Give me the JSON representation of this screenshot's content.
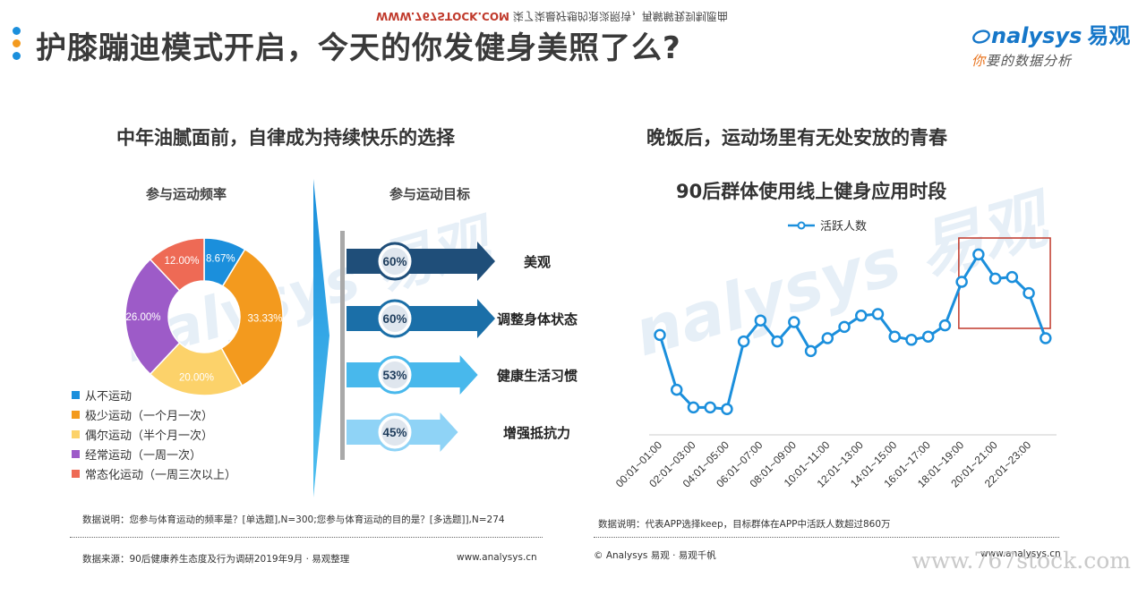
{
  "header": {
    "title": "护膝蹦迪模式开启，今天的你发健身美照了么?",
    "mirror_text_red": "WWW.767STOCK.COM",
    "mirror_text": "柒了柒最好想的浪淡照诗，再解解我到制愿曲",
    "dot_colors": [
      "#1b8fdc",
      "#f39a1e",
      "#1b8fdc"
    ]
  },
  "logo": {
    "brand": "nalysys",
    "brand_cn": "易观",
    "slogan_accent": "你",
    "slogan": "要的数据分析",
    "color": "#1677c9"
  },
  "left": {
    "section_title": "中年油腻面前，自律成为持续快乐的选择",
    "freq_title": "参与运动频率",
    "goal_title": "参与运动目标",
    "note": "数据说明：您参与体育运动的频率是？[单选题],N=300;您参与体育运动的目的是？[多选题]],N=274",
    "source": "数据来源：90后健康养生态度及行为调研2019年9月 · 易观整理",
    "site": "www.analysys.cn"
  },
  "right": {
    "section_title": "晚饭后，运动场里有无处安放的青春",
    "note": "数据说明：代表APP选择keep，目标群体在APP中活跃人数超过860万",
    "copyright": "© Analysys 易观 · 易观千帆",
    "site": "www.analysys.cn"
  },
  "watermark": "www.767stock.com",
  "chart_data": [
    {
      "type": "pie",
      "title": "参与运动频率",
      "categories": [
        "从不运动",
        "极少运动（一个月一次）",
        "偶尔运动（半个月一次）",
        "经常运动（一周一次）",
        "常态化运动（一周三次以上）"
      ],
      "values": [
        8.67,
        33.33,
        20.0,
        26.0,
        12.0
      ],
      "labels": [
        "8.67%",
        "33.33%",
        "20.00%",
        "26.00%",
        "12.00%"
      ],
      "colors": [
        "#1b8fdc",
        "#f39a1e",
        "#fcd26a",
        "#9d5bc8",
        "#ee6a55"
      ],
      "legend_position": "bottom-left"
    },
    {
      "type": "bar",
      "title": "参与运动目标",
      "categories": [
        "美观",
        "调整身体状态",
        "健康生活习惯",
        "增强抵抗力"
      ],
      "values": [
        60,
        60,
        53,
        45
      ],
      "labels": [
        "60%",
        "60%",
        "53%",
        "45%"
      ],
      "colors": [
        "#1f4e79",
        "#1b6fa8",
        "#48b8ec",
        "#8fd3f6"
      ]
    },
    {
      "type": "line",
      "title": "90后群体使用线上健身应用时段",
      "series": [
        {
          "name": "活跃人数",
          "values": [
            0.62,
            0.28,
            0.17,
            0.17,
            0.16,
            0.58,
            0.71,
            0.58,
            0.7,
            0.52,
            0.6,
            0.67,
            0.74,
            0.75,
            0.61,
            0.59,
            0.61,
            0.68,
            0.95,
            1.12,
            0.97,
            0.98,
            0.88,
            0.6
          ]
        }
      ],
      "x": [
        "00:01~01:00",
        "01:01~02:00",
        "02:01~03:00",
        "03:01~04:00",
        "04:01~05:00",
        "05:01~06:00",
        "06:01~07:00",
        "07:01~08:00",
        "08:01~09:00",
        "09:01~10:00",
        "10:01~11:00",
        "11:01~12:00",
        "12:01~13:00",
        "13:01~14:00",
        "14:01~15:00",
        "15:01~16:00",
        "16:01~17:00",
        "17:01~18:00",
        "18:01~19:00",
        "19:01~20:00",
        "20:01~21:00",
        "21:01~22:00",
        "22:01~23:00",
        "23:01~24:00"
      ],
      "tick_labels": [
        "00:01~01:00",
        "02:01~03:00",
        "04:01~05:00",
        "06:01~07:00",
        "08:01~09:00",
        "10:01~11:00",
        "12:01~13:00",
        "14:01~15:00",
        "16:01~17:00",
        "18:01~19:00",
        "20:01~21:00",
        "22:01~23:00"
      ],
      "highlight_range": [
        "19:01~20:00",
        "22:01~23:00"
      ],
      "color": "#1b8fdc",
      "highlight_color": "#c0392b",
      "legend_position": "top"
    }
  ]
}
